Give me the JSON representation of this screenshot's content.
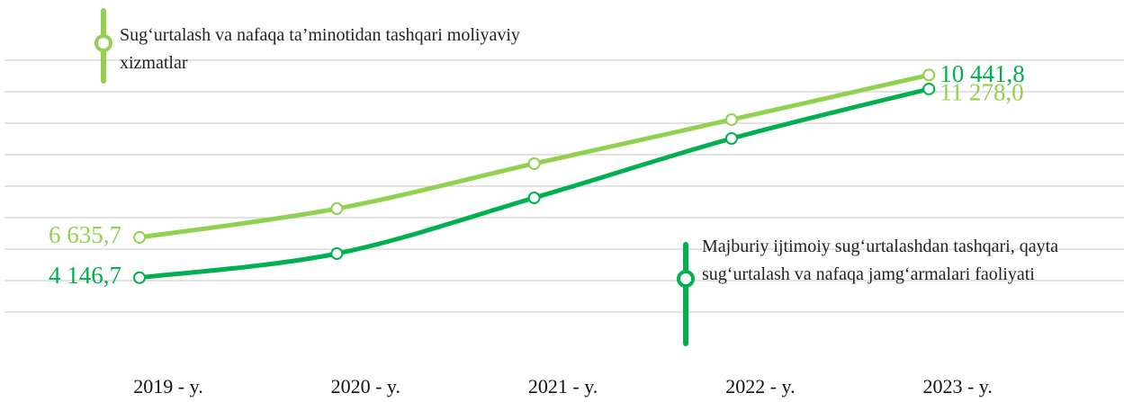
{
  "chart_data": {
    "type": "line",
    "categories": [
      "2019 - y.",
      "2020 - y.",
      "2021 - y.",
      "2022 - y.",
      "2023 - y."
    ],
    "series": [
      {
        "name": "Sug‘urtalash va nafaqa ta’minotidan tashqari moliyaviy xizmatlar",
        "color": "#92d050",
        "values": [
          6635.7,
          7457,
          8743,
          10003,
          11278.0
        ],
        "value_labels": [
          "6 635,7",
          null,
          null,
          null,
          "11 278,0"
        ]
      },
      {
        "name": "Majburiy ijtimoiy sug‘urtalashdan tashqari, qayta sug‘urtalash va nafaqa jamg‘armalari faoliyati",
        "color": "#00b050",
        "axis": "y2",
        "values": [
          4146.7,
          4950,
          6810,
          8790,
          10441.8
        ],
        "value_labels": [
          "4 146,7",
          null,
          null,
          null,
          "10 441,8"
        ]
      }
    ],
    "ylim": [
      4500,
      11700
    ],
    "yticks": [
      4500,
      5400,
      6300,
      7200,
      8100,
      9000,
      9900,
      10800,
      11700
    ],
    "y2lim": [
      3000,
      11400
    ],
    "grid": true
  }
}
